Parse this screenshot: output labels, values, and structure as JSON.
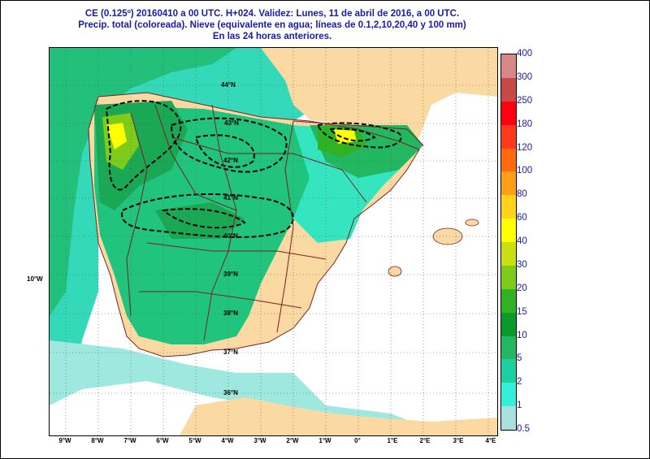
{
  "header": {
    "line1": "CE (0.125º) 20160410 a 00 UTC.  H+024. Validez: Lunes, 11 de abril de 2016,  a  00 UTC.",
    "line2": "Precip. total (coloreada). Nieve (equivalente en agua; líneas de 0.1,2,10,20,40 y 100 mm)",
    "line3": "En las 24 horas anteriores."
  },
  "axes": {
    "lon_labels": [
      "9°W",
      "8°W",
      "7°W",
      "6°W",
      "5°W",
      "4°W",
      "3°W",
      "2°W",
      "1°W",
      "0°",
      "1°E",
      "2°E",
      "3°E",
      "4°E"
    ],
    "lat_labels": [
      "44°N",
      "43°N",
      "42°N",
      "41°N",
      "40°N",
      "39°N",
      "38°N",
      "37°N",
      "36°N"
    ],
    "side_label": "10°W"
  },
  "legend": {
    "units_values": [
      "0.5",
      "1",
      "2",
      "5",
      "10",
      "15",
      "20",
      "30",
      "40",
      "60",
      "80",
      "100",
      "120",
      "180",
      "250",
      "300",
      "400"
    ],
    "colors": [
      "#a8e0e0",
      "#33f0d8",
      "#1dd0a0",
      "#22b861",
      "#0a9a2a",
      "#2fb325",
      "#7dcc1a",
      "#c8e010",
      "#ffff00",
      "#ffd21c",
      "#ff9f18",
      "#ff6a10",
      "#ff3a1a",
      "#ff0010",
      "#c84848",
      "#d88888",
      "#f0c8c8"
    ]
  },
  "map_colors": {
    "sea": "#ffffff",
    "land_dry": "#fbd9a3",
    "precip_low": "#34e5c0",
    "precip_mid": "#20c47c",
    "precip_high": "#1aa854",
    "snow_contour": "#000000",
    "border": "#7a2020"
  }
}
